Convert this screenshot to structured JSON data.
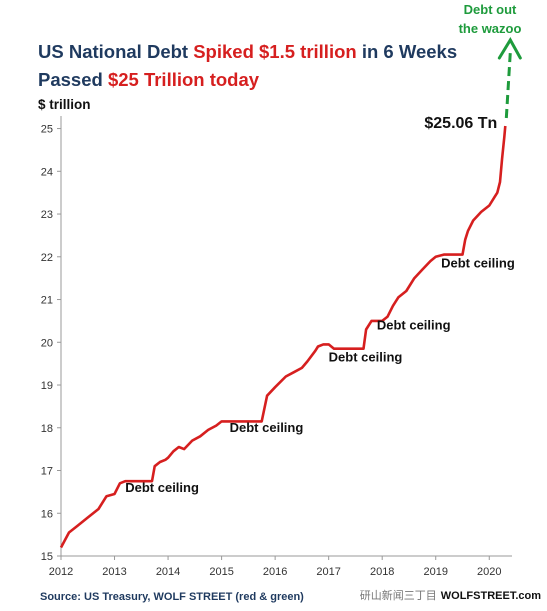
{
  "chart_data": {
    "type": "line",
    "title_parts": [
      "US National Debt ",
      "Spiked $1.5 trillion",
      " in 6 Weeks"
    ],
    "subtitle_parts": [
      "Passed ",
      "$25 Trillion today"
    ],
    "ylabel": "$ trillion",
    "xlabel": "",
    "ylim": [
      15,
      25.2
    ],
    "xlim": [
      2012,
      2020.35
    ],
    "y_ticks": [
      "15",
      "16",
      "17",
      "18",
      "19",
      "20",
      "21",
      "22",
      "23",
      "24",
      "25"
    ],
    "x_ticks": [
      "2012",
      "2013",
      "2014",
      "2015",
      "2016",
      "2017",
      "2018",
      "2019",
      "2020"
    ],
    "grid": "none",
    "legend": "none",
    "colors": {
      "line": "#d61f1f",
      "title": "#1f3a5f",
      "highlight": "#d61f1f",
      "arrow": "#1e9b3c"
    },
    "series": [
      {
        "x": [
          2012.0,
          2012.15,
          2012.3,
          2012.5,
          2012.7,
          2012.85,
          2013.0,
          2013.1,
          2013.2,
          2013.25,
          2013.3,
          2013.7,
          2013.75,
          2013.85,
          2013.95,
          2014.0,
          2014.1,
          2014.2,
          2014.3,
          2014.45,
          2014.6,
          2014.75,
          2014.9,
          2015.0,
          2015.1,
          2015.2,
          2015.4,
          2015.6,
          2015.75,
          2015.8,
          2015.85,
          2016.0,
          2016.2,
          2016.35,
          2016.5,
          2016.6,
          2016.75,
          2016.8,
          2016.9,
          2017.0,
          2017.1,
          2017.2,
          2017.5,
          2017.65,
          2017.7,
          2017.8,
          2017.9,
          2018.0,
          2018.1,
          2018.2,
          2018.3,
          2018.45,
          2018.6,
          2018.75,
          2018.9,
          2019.0,
          2019.15,
          2019.5,
          2019.55,
          2019.6,
          2019.7,
          2019.85,
          2020.0,
          2020.1,
          2020.15,
          2020.2,
          2020.24,
          2020.28,
          2020.3
        ],
        "values": [
          15.2,
          15.55,
          15.7,
          15.9,
          16.1,
          16.4,
          16.45,
          16.7,
          16.75,
          16.75,
          16.75,
          16.75,
          17.1,
          17.2,
          17.25,
          17.3,
          17.45,
          17.55,
          17.5,
          17.7,
          17.8,
          17.95,
          18.05,
          18.15,
          18.15,
          18.15,
          18.15,
          18.15,
          18.15,
          18.45,
          18.75,
          18.95,
          19.2,
          19.3,
          19.4,
          19.55,
          19.8,
          19.9,
          19.95,
          19.95,
          19.85,
          19.85,
          19.85,
          19.85,
          20.3,
          20.5,
          20.5,
          20.5,
          20.6,
          20.85,
          21.05,
          21.2,
          21.5,
          21.7,
          21.9,
          22.0,
          22.05,
          22.05,
          22.4,
          22.6,
          22.85,
          23.05,
          23.2,
          23.4,
          23.5,
          23.75,
          24.3,
          24.8,
          25.06
        ]
      }
    ],
    "annotations": {
      "last_value": "$25.06 Tn",
      "arrow_text_1": "Debt out",
      "arrow_text_2": "the wazoo",
      "debt_ceiling": [
        {
          "text": "Debt ceiling",
          "x": 2013.2,
          "y": 16.5
        },
        {
          "text": "Debt ceiling",
          "x": 2015.15,
          "y": 17.9
        },
        {
          "text": "Debt ceiling",
          "x": 2017.0,
          "y": 19.55
        },
        {
          "text": "Debt ceiling",
          "x": 2017.9,
          "y": 20.3
        },
        {
          "text": "Debt ceiling",
          "x": 2019.1,
          "y": 21.75
        }
      ]
    },
    "source": "Source: US Treasury, WOLF STREET (red & green)",
    "watermark": "WOLFSTREET.com",
    "watermark_badge": "研山新闻三丁目"
  }
}
